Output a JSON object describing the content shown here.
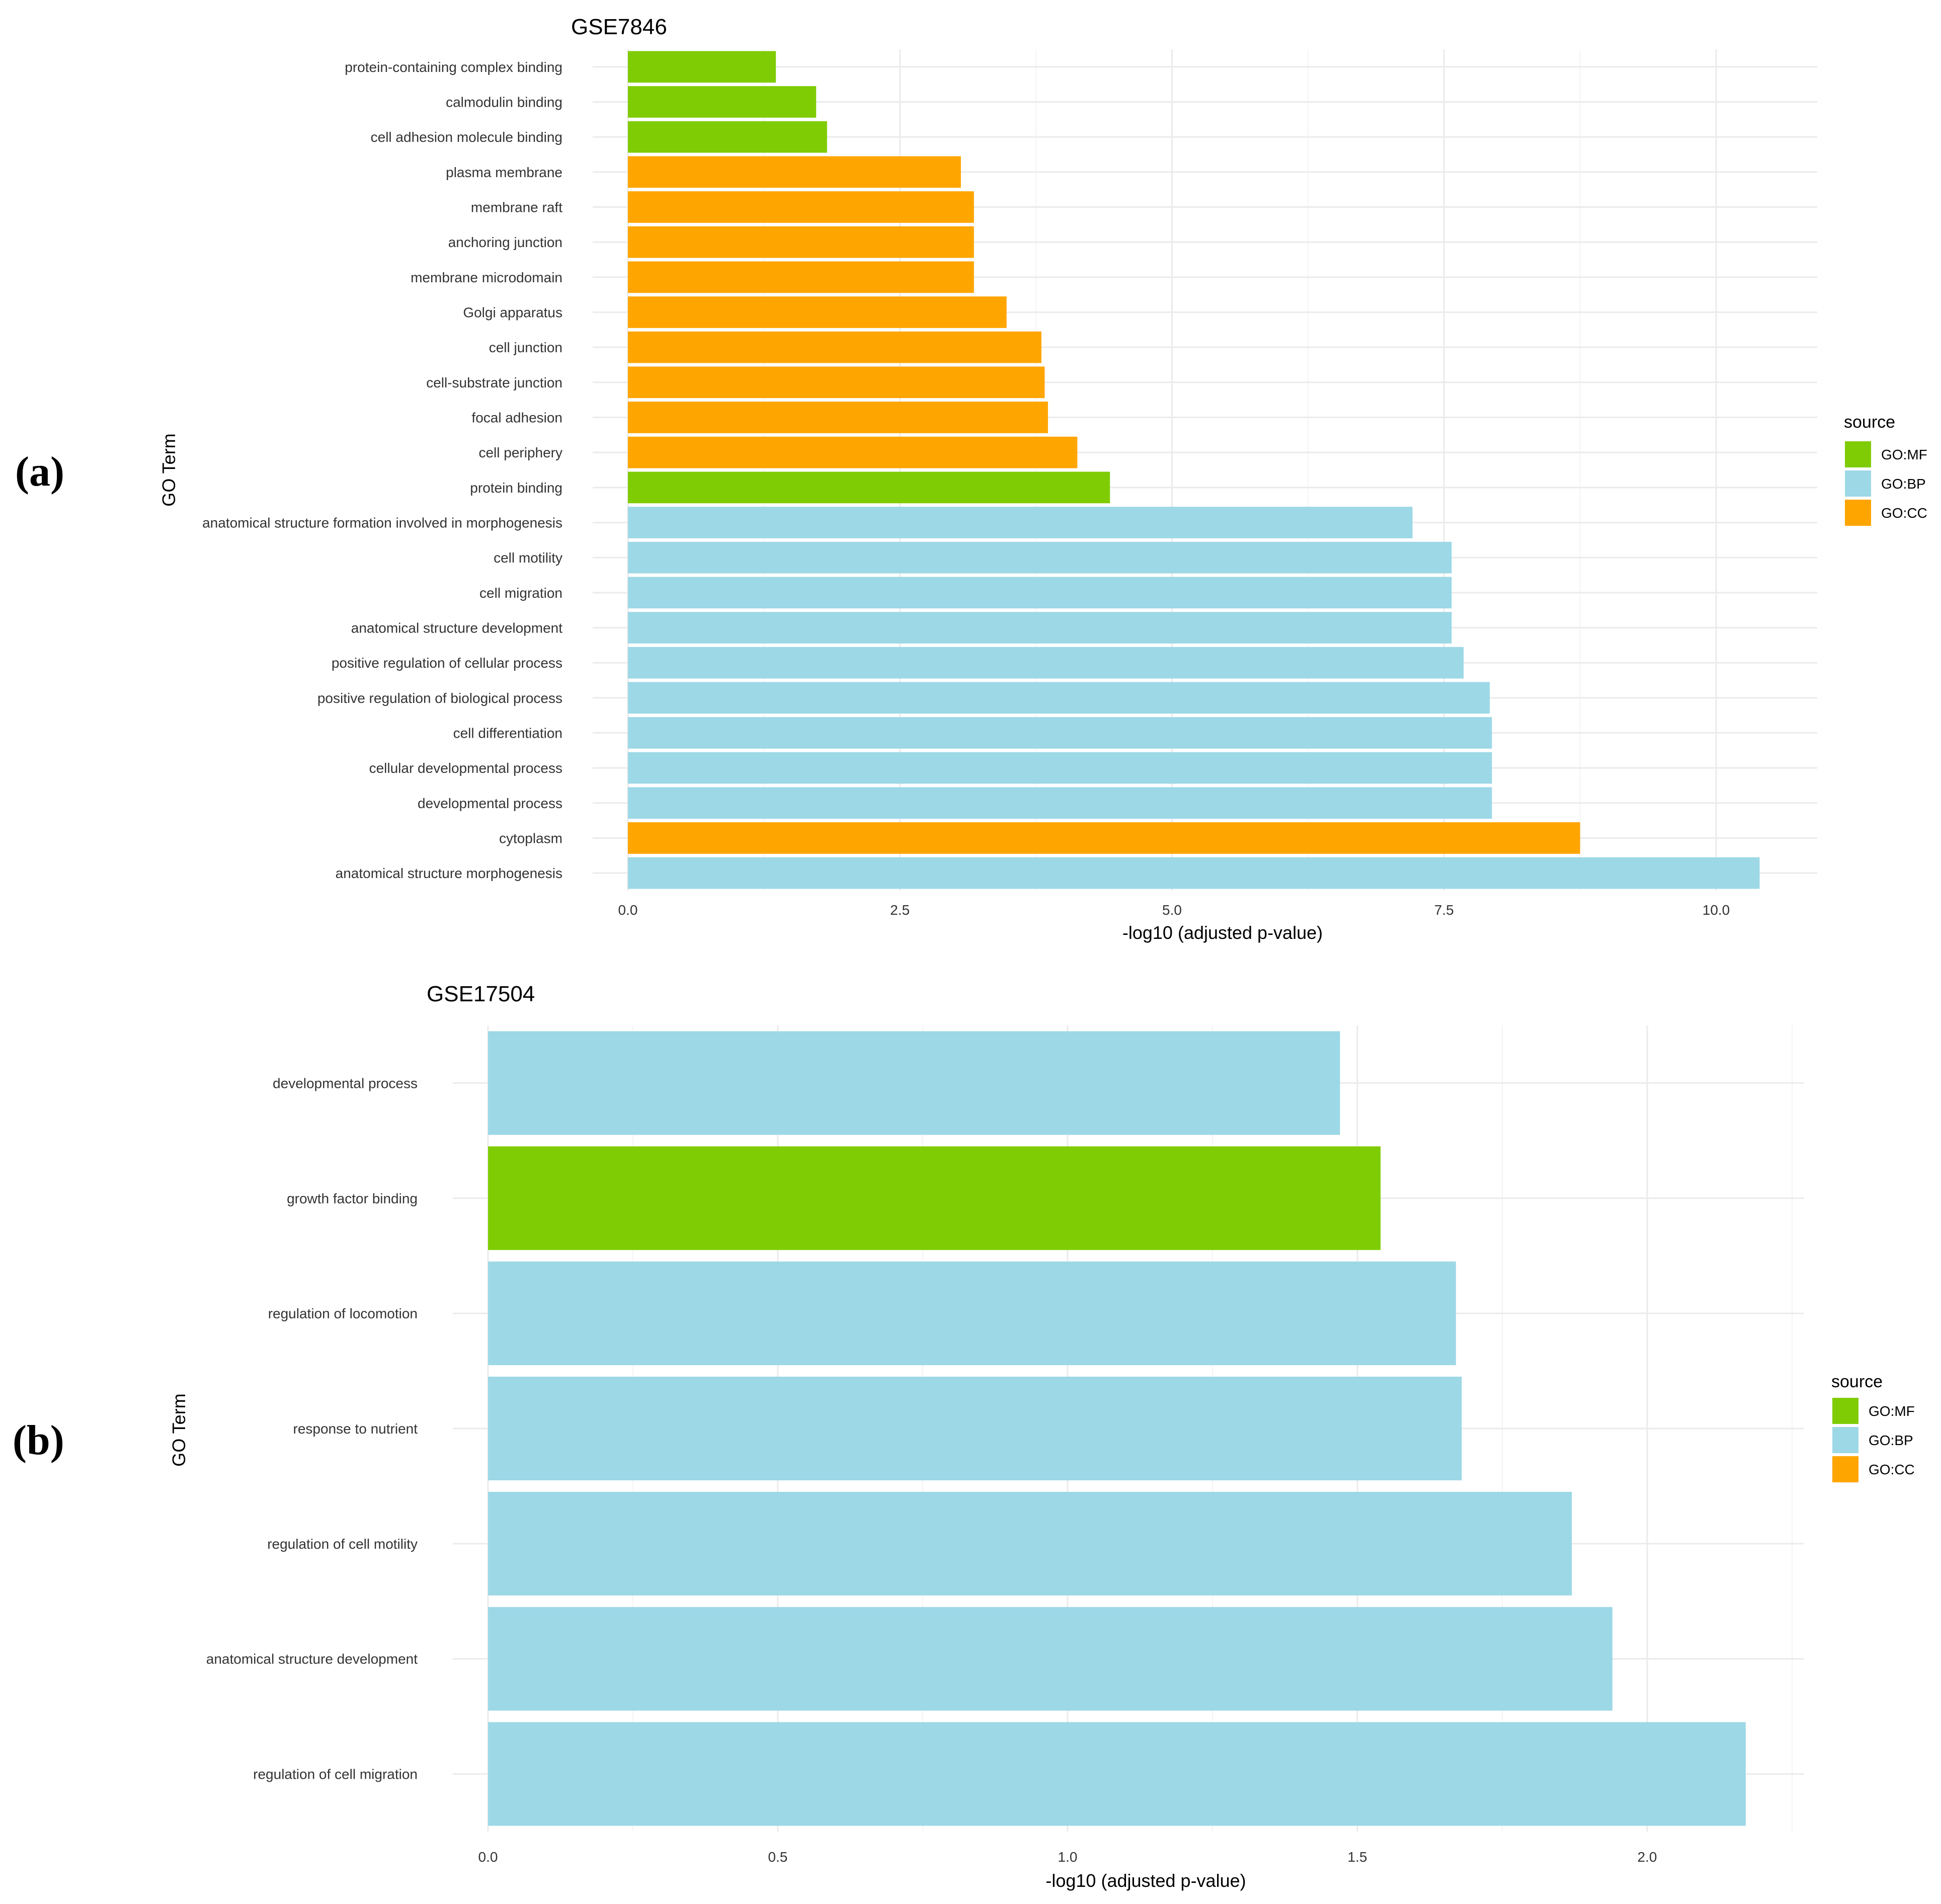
{
  "panel_labels": [
    "(a)",
    "(b)"
  ],
  "colors": {
    "GO:MF": "#7fcc05",
    "GO:BP": "#9dd8e6",
    "GO:CC": "#ffa500"
  },
  "chart_data": [
    {
      "type": "bar",
      "orientation": "horizontal",
      "title": "GSE7846",
      "xlabel": "-log10 (adjusted p-value)",
      "ylabel": "GO Term",
      "xlim": [
        0,
        10.9
      ],
      "xticks": [
        "0.0",
        "2.5",
        "5.0",
        "7.5",
        "10.0"
      ],
      "xtick_values": [
        0,
        2.5,
        5,
        7.5,
        10
      ],
      "legend_title": "source",
      "legend_entries": [
        "GO:MF",
        "GO:BP",
        "GO:CC"
      ],
      "categories": [
        "anatomical structure morphogenesis",
        "cytoplasm",
        "developmental process",
        "cellular developmental process",
        "cell differentiation",
        "positive regulation of biological process",
        "positive regulation of cellular process",
        "anatomical structure development",
        "cell migration",
        "cell motility",
        "anatomical structure formation involved in morphogenesis",
        "protein binding",
        "cell periphery",
        "focal adhesion",
        "cell-substrate junction",
        "cell junction",
        "Golgi apparatus",
        "membrane microdomain",
        "anchoring junction",
        "membrane raft",
        "plasma membrane",
        "cell adhesion molecule binding",
        "calmodulin binding",
        "protein-containing complex binding"
      ],
      "values": [
        10.4,
        8.75,
        7.94,
        7.94,
        7.94,
        7.92,
        7.68,
        7.57,
        7.57,
        7.57,
        7.21,
        4.43,
        4.13,
        3.86,
        3.83,
        3.8,
        3.48,
        3.18,
        3.18,
        3.18,
        3.06,
        1.83,
        1.73,
        1.36
      ],
      "sources": [
        "GO:BP",
        "GO:CC",
        "GO:BP",
        "GO:BP",
        "GO:BP",
        "GO:BP",
        "GO:BP",
        "GO:BP",
        "GO:BP",
        "GO:BP",
        "GO:BP",
        "GO:MF",
        "GO:CC",
        "GO:CC",
        "GO:CC",
        "GO:CC",
        "GO:CC",
        "GO:CC",
        "GO:CC",
        "GO:CC",
        "GO:CC",
        "GO:MF",
        "GO:MF",
        "GO:MF"
      ]
    },
    {
      "type": "bar",
      "orientation": "horizontal",
      "title": "GSE17504",
      "xlabel": "-log10 (adjusted p-value)",
      "ylabel": "GO Term",
      "xlim": [
        0,
        2.27
      ],
      "xticks": [
        "0.0",
        "0.5",
        "1.0",
        "1.5",
        "2.0"
      ],
      "xtick_values": [
        0,
        0.5,
        1,
        1.5,
        2
      ],
      "legend_title": "source",
      "legend_entries": [
        "GO:MF",
        "GO:BP",
        "GO:CC"
      ],
      "categories": [
        "regulation of cell migration",
        "anatomical structure development",
        "regulation of cell motility",
        "response to nutrient",
        "regulation of locomotion",
        "growth factor binding",
        "developmental process"
      ],
      "values": [
        2.17,
        1.94,
        1.87,
        1.68,
        1.67,
        1.54,
        1.47
      ],
      "sources": [
        "GO:BP",
        "GO:BP",
        "GO:BP",
        "GO:BP",
        "GO:BP",
        "GO:MF",
        "GO:BP"
      ]
    }
  ]
}
